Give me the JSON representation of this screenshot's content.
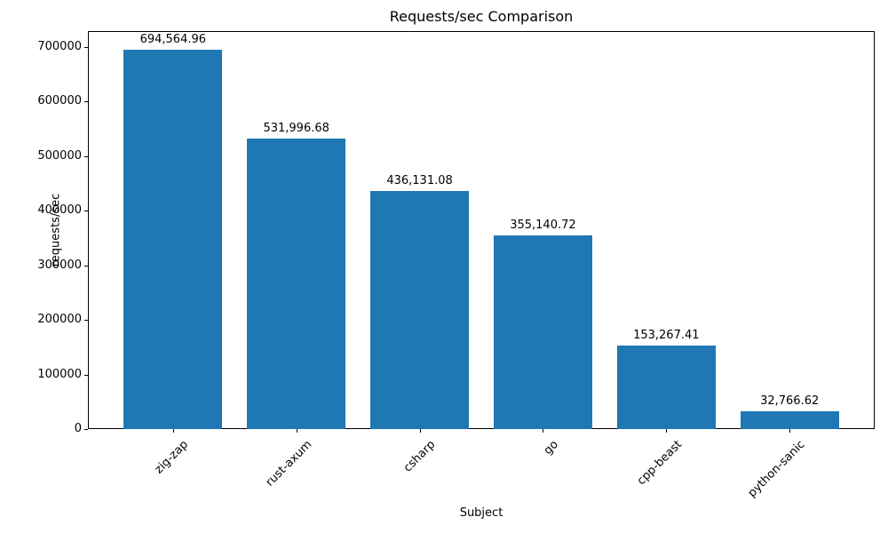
{
  "chart_data": {
    "type": "bar",
    "title": "Requests/sec Comparison",
    "xlabel": "Subject",
    "ylabel": "requests/sec",
    "categories": [
      "zig-zap",
      "rust-axum",
      "csharp",
      "go",
      "cpp-beast",
      "python-sanic"
    ],
    "values": [
      694564.96,
      531996.68,
      436131.08,
      355140.72,
      153267.41,
      32766.62
    ],
    "value_labels": [
      "694,564.96",
      "531,996.68",
      "436,131.08",
      "355,140.72",
      "153,267.41",
      "32,766.62"
    ],
    "yticks": [
      0,
      100000,
      200000,
      300000,
      400000,
      500000,
      600000,
      700000
    ],
    "ytick_labels": [
      "0",
      "100000",
      "200000",
      "300000",
      "400000",
      "500000",
      "600000",
      "700000"
    ],
    "ylim": [
      0,
      729293
    ],
    "bar_color": "#1f77b4",
    "grid": false,
    "legend_position": "none"
  }
}
